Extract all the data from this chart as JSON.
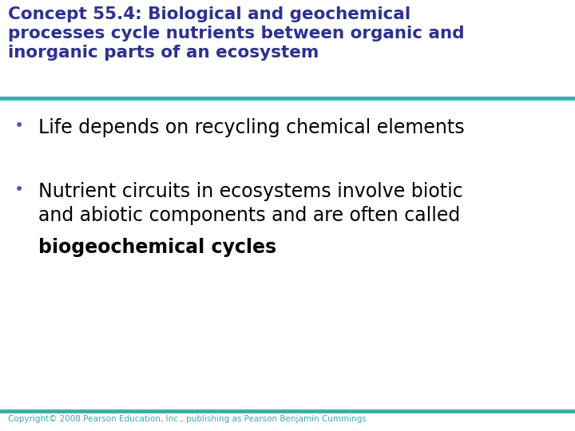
{
  "title_line1": "Concept 55.4: Biological and geochemical",
  "title_line2": "processes cycle nutrients between organic and",
  "title_line3": "inorganic parts of an ecosystem",
  "title_color": "#2E3191",
  "title_fontsize": 15.5,
  "separator_color": "#3AADA8",
  "separator_linewidth": 3.5,
  "bullet1_text": "Life depends on recycling chemical elements",
  "bullet2_line1": "Nutrient circuits in ecosystems involve biotic",
  "bullet2_line2": "and abiotic components and are often called",
  "bullet2_bold": "biogeochemical cycles",
  "bullet_color": "#000000",
  "bullet_dot_color": "#5555AA",
  "bullet_fontsize": 17,
  "copyright": "Copyright© 2008 Pearson Education, Inc., publishing as Pearson Benjamin Cummings",
  "copyright_color": "#3AADA8",
  "copyright_fontsize": 7.5,
  "background_color": "#FFFFFF"
}
